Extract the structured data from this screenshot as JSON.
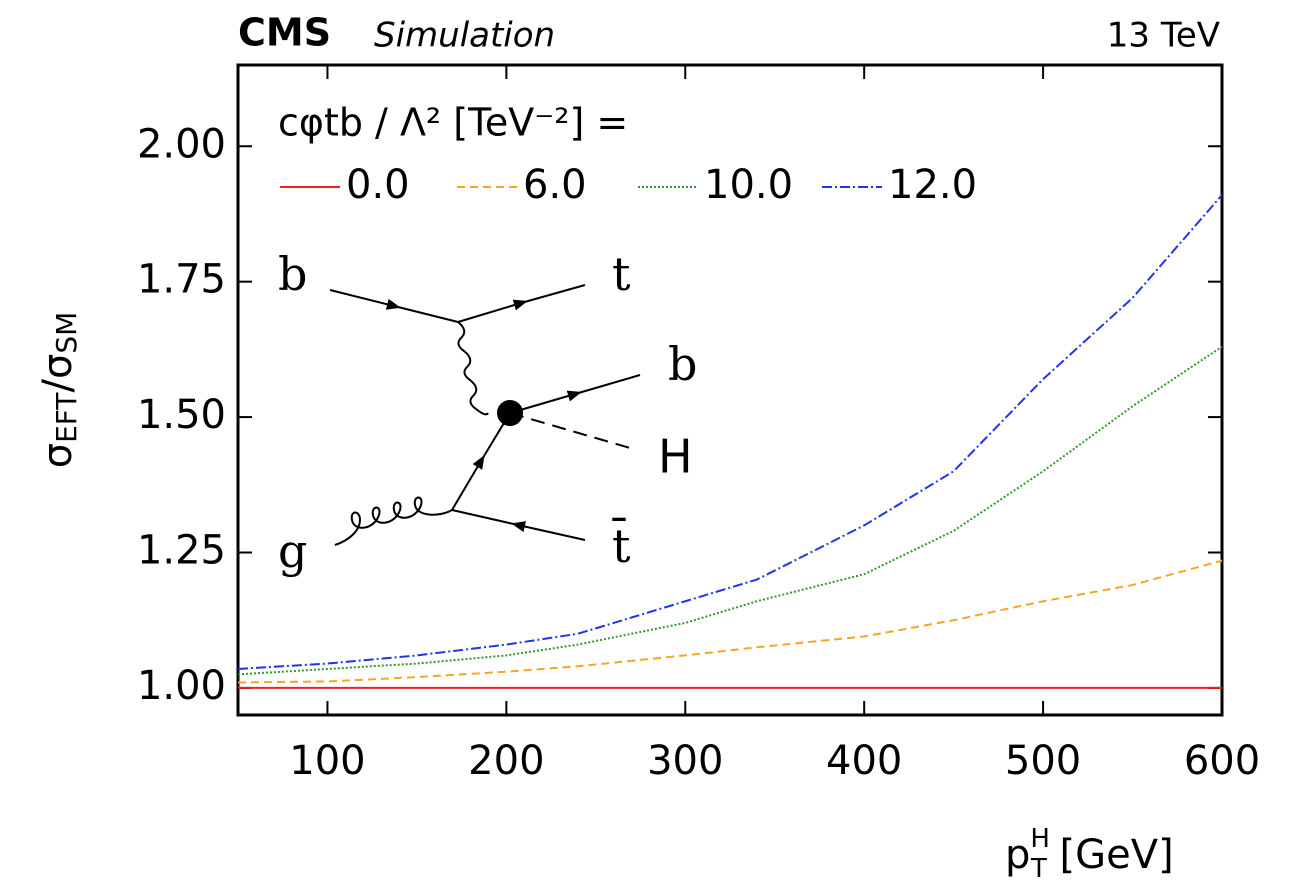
{
  "chart_data": {
    "type": "line",
    "experiment": "CMS",
    "status": "Simulation",
    "energy": "13 TeV",
    "y_label": [
      "σ",
      "EFT",
      "/σ",
      "SM"
    ],
    "x_label": [
      "p",
      "H",
      "T",
      " [GeV]"
    ],
    "legend_title": "cφtb / Λ² [TeV⁻²] =",
    "diagram_labels": [
      "b",
      "t",
      "b",
      "H",
      "g",
      "t̄"
    ],
    "xlim": [
      50,
      600
    ],
    "ylim": [
      0.95,
      2.15
    ],
    "xticks": [
      100,
      200,
      300,
      400,
      500,
      600
    ],
    "yticks": [
      {
        "value": 1,
        "label": "1.00"
      },
      {
        "value": 1.25,
        "label": "1.25"
      },
      {
        "value": 1.5,
        "label": "1.50"
      },
      {
        "value": 1.75,
        "label": "1.75"
      },
      {
        "value": 2,
        "label": "2.00"
      }
    ],
    "x": [
      50,
      100,
      150,
      200,
      240,
      300,
      340,
      400,
      450,
      500,
      550,
      600
    ],
    "series": [
      {
        "name": "0.0",
        "color": "#ee2222",
        "dash": "none",
        "values": [
          1,
          1,
          1,
          1,
          1,
          1,
          1,
          1,
          1,
          1,
          1,
          1
        ]
      },
      {
        "name": "6.0",
        "color": "#f5a623",
        "dash": "8 5",
        "values": [
          1.01,
          1.012,
          1.02,
          1.03,
          1.04,
          1.06,
          1.075,
          1.095,
          1.125,
          1.16,
          1.19,
          1.235
        ]
      },
      {
        "name": "10.0",
        "color": "#2e9a2e",
        "dash": "2 2",
        "values": [
          1.025,
          1.035,
          1.045,
          1.06,
          1.08,
          1.12,
          1.16,
          1.21,
          1.29,
          1.4,
          1.52,
          1.63
        ]
      },
      {
        "name": "12.0",
        "color": "#2233ee",
        "dash": "10 3 2 3",
        "values": [
          1.035,
          1.045,
          1.06,
          1.08,
          1.1,
          1.16,
          1.2,
          1.3,
          1.4,
          1.57,
          1.72,
          1.91
        ]
      }
    ]
  }
}
